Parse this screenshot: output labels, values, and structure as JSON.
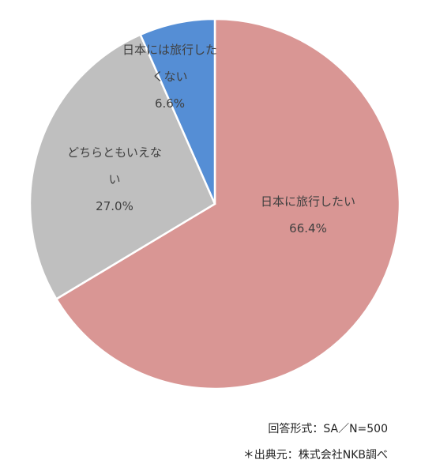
{
  "chart_data": {
    "type": "pie",
    "categories": [
      "日本に旅行したい",
      "どちらともいえない",
      "日本には旅行したくない"
    ],
    "values": [
      66.4,
      27.0,
      6.6
    ],
    "value_labels": [
      "66.4%",
      "27.0%",
      "6.6%"
    ],
    "colors": [
      "#d99694",
      "#bfbfbf",
      "#558ed5"
    ],
    "notes": [
      "回答形式：SA／N=500",
      "＊出典元：株式会社NKB調べ"
    ]
  }
}
